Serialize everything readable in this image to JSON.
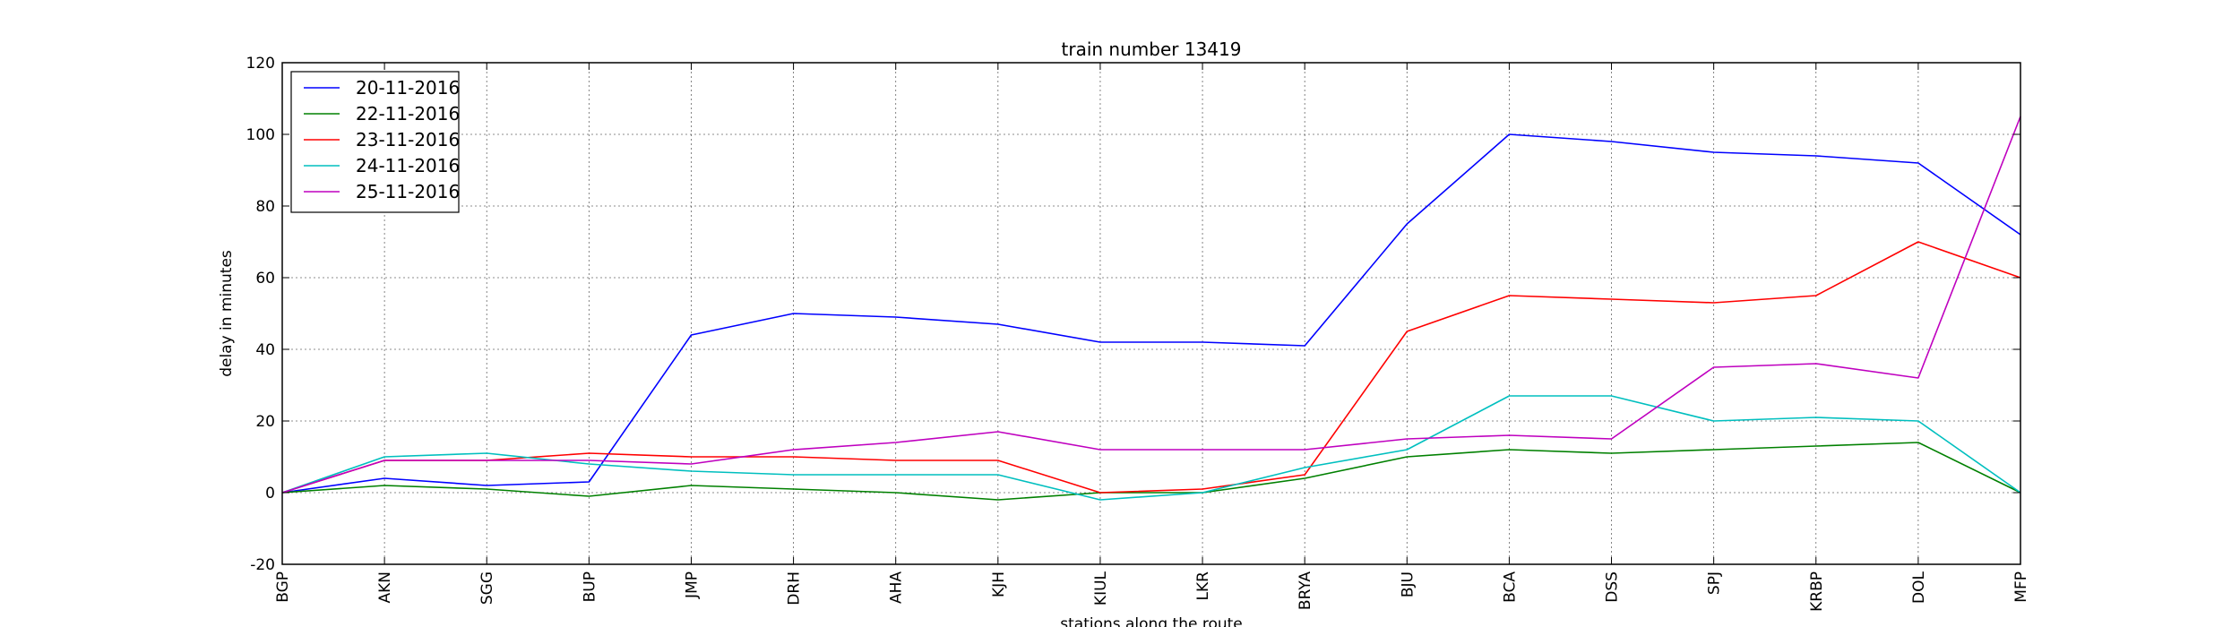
{
  "chart_data": {
    "type": "line",
    "title": "train number 13419",
    "xlabel": "stations along the route",
    "ylabel": "delay in minutes",
    "categories": [
      "BGP",
      "AKN",
      "SGG",
      "BUP",
      "JMP",
      "DRH",
      "AHA",
      "KJH",
      "KIUL",
      "LKR",
      "BRYA",
      "BJU",
      "BCA",
      "DSS",
      "SPJ",
      "KRBP",
      "DOL",
      "MFP"
    ],
    "ylim": [
      -20,
      120
    ],
    "yticks": [
      -20,
      0,
      20,
      40,
      60,
      80,
      100,
      120
    ],
    "grid": true,
    "legend_position": "top-left",
    "series": [
      {
        "name": "20-11-2016",
        "color": "#0000ff",
        "values": [
          0,
          4,
          2,
          3,
          44,
          50,
          49,
          47,
          42,
          42,
          41,
          75,
          100,
          98,
          95,
          94,
          92,
          72
        ]
      },
      {
        "name": "22-11-2016",
        "color": "#008000",
        "values": [
          0,
          2,
          1,
          -1,
          2,
          1,
          0,
          -2,
          0,
          0,
          4,
          10,
          12,
          11,
          12,
          13,
          14,
          0
        ]
      },
      {
        "name": "23-11-2016",
        "color": "#ff0000",
        "values": [
          0,
          9,
          9,
          11,
          10,
          10,
          9,
          9,
          0,
          1,
          5,
          45,
          55,
          54,
          53,
          55,
          70,
          60
        ]
      },
      {
        "name": "24-11-2016",
        "color": "#00bfbf",
        "values": [
          0,
          10,
          11,
          8,
          6,
          5,
          5,
          5,
          -2,
          0,
          7,
          12,
          27,
          27,
          20,
          21,
          20,
          0
        ]
      },
      {
        "name": "25-11-2016",
        "color": "#bf00bf",
        "values": [
          0,
          9,
          9,
          9,
          8,
          12,
          14,
          17,
          12,
          12,
          12,
          15,
          16,
          15,
          35,
          36,
          32,
          105
        ]
      }
    ]
  }
}
